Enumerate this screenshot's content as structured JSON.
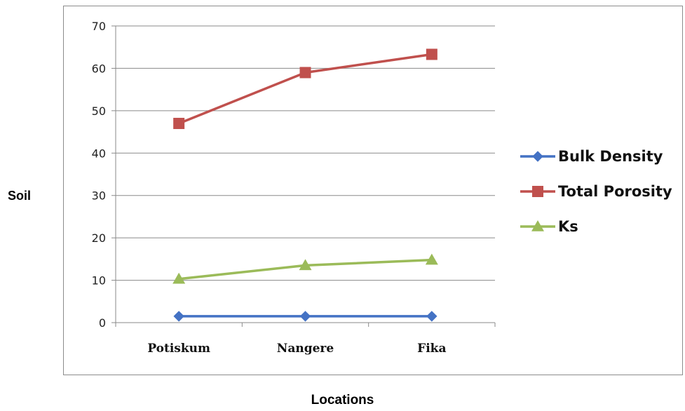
{
  "chart_data": {
    "type": "line",
    "categories": [
      "Potiskum",
      "Nangere",
      "Fika"
    ],
    "series": [
      {
        "name": "Bulk Density",
        "values": [
          1.5,
          1.5,
          1.5
        ],
        "color": "#4472C4",
        "marker": "diamond"
      },
      {
        "name": "Total Porosity",
        "values": [
          47,
          59,
          63.3
        ],
        "color": "#C0504D",
        "marker": "square"
      },
      {
        "name": "Ks",
        "values": [
          10.3,
          13.5,
          14.8
        ],
        "color": "#9BBB59",
        "marker": "triangle"
      }
    ],
    "yticks": [
      "0",
      "10",
      "20",
      "30",
      "40",
      "50",
      "60",
      "70"
    ],
    "ylim": [
      0,
      70
    ],
    "ylabel": "Soil",
    "xlabel": "Locations",
    "grid": true,
    "legend": "right"
  }
}
